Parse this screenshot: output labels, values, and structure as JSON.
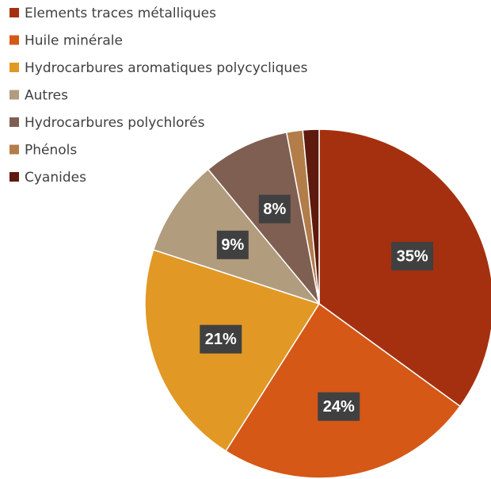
{
  "chart_data": {
    "type": "pie",
    "categories": [
      "Elements traces métalliques",
      "Huile minérale",
      "Hydrocarbures aromatiques polycycliques",
      "Autres",
      "Hydrocarbures polychlorés",
      "Phénols",
      "Cyanides"
    ],
    "values": [
      35,
      24,
      21,
      9,
      8,
      1.5,
      1.5
    ],
    "value_labels": [
      "35%",
      "24%",
      "21%",
      "9%",
      "8%",
      null,
      null
    ],
    "colors": [
      "#a5300f",
      "#d55816",
      "#e19825",
      "#b19c7d",
      "#7f5f52",
      "#b27d49",
      "#5e1a0c"
    ]
  }
}
